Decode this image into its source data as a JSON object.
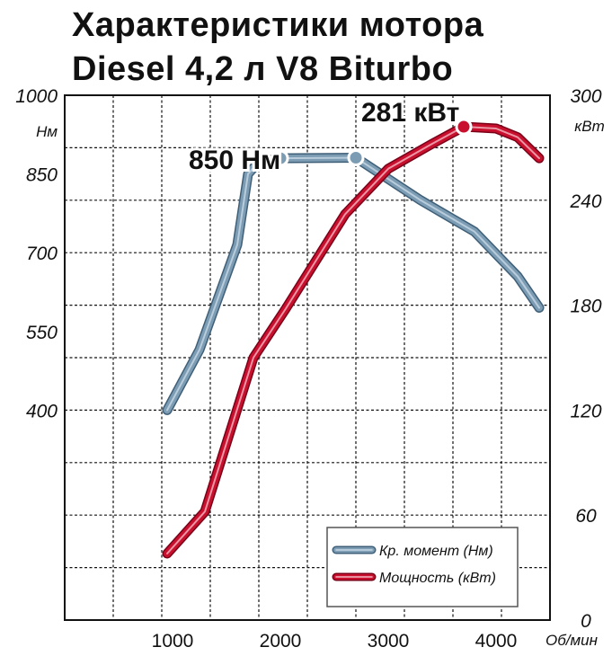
{
  "title_line1": "Характеристики мотора",
  "title_line2": "Diesel 4,2 л V8 Biturbo",
  "colors": {
    "torque": "#7c9cb4",
    "power": "#c8102e",
    "grid": "#111111"
  },
  "chart_data": {
    "type": "line",
    "x_ticks": [
      1000,
      2000,
      3000,
      4000
    ],
    "x_unit": "Об/мин",
    "xlim": [
      0,
      4500
    ],
    "left_axis": {
      "unit": "Нм",
      "ylim": [
        400,
        1000
      ],
      "ticks": [
        400,
        550,
        700,
        850,
        1000
      ]
    },
    "right_axis": {
      "unit": "кВт",
      "ylim": [
        0,
        300
      ],
      "ticks": [
        0,
        60,
        120,
        180,
        240,
        300
      ]
    },
    "grid": true,
    "legend_position": "bottom-right",
    "series": [
      {
        "name": "Кр. момент (Нм)",
        "axis": "left",
        "color": "#7c9cb4",
        "points": [
          [
            950,
            400
          ],
          [
            1250,
            515
          ],
          [
            1600,
            715
          ],
          [
            1700,
            850
          ],
          [
            1800,
            873
          ],
          [
            2000,
            880
          ],
          [
            2700,
            881
          ],
          [
            3300,
            800
          ],
          [
            3800,
            740
          ],
          [
            4200,
            655
          ],
          [
            4400,
            595
          ]
        ],
        "markers": [
          [
            2000,
            880
          ],
          [
            2700,
            881
          ]
        ]
      },
      {
        "name": "Мощность (кВт)",
        "axis": "right",
        "color": "#c8102e",
        "points": [
          [
            950,
            38
          ],
          [
            1300,
            62
          ],
          [
            1750,
            150
          ],
          [
            2050,
            178
          ],
          [
            2600,
            232
          ],
          [
            3000,
            258
          ],
          [
            3400,
            272
          ],
          [
            3700,
            282
          ],
          [
            4000,
            281
          ],
          [
            4200,
            276
          ],
          [
            4400,
            264
          ]
        ],
        "markers": [
          [
            3700,
            282
          ]
        ]
      }
    ],
    "annotations": [
      {
        "text": "850 Нм",
        "x": 1150,
        "y": 860,
        "axis": "left"
      },
      {
        "text": "281 кВт",
        "x": 2750,
        "y": 285,
        "axis": "right"
      }
    ]
  }
}
